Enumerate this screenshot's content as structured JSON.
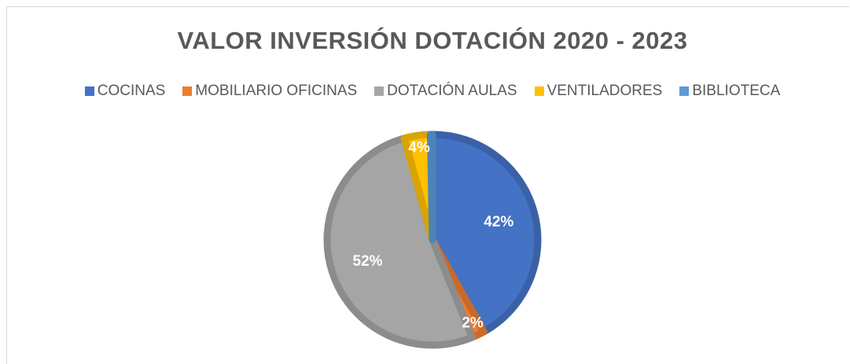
{
  "chart_data": {
    "type": "pie",
    "title": "VALOR INVERSIÓN DOTACIÓN 2020 - 2023",
    "categories": [
      "COCINAS",
      "MOBILIARIO OFICINAS",
      "DOTACIÓN AULAS",
      "VENTILADORES",
      "BIBLIOTECA"
    ],
    "values": [
      42,
      2,
      52,
      4,
      0.3
    ],
    "value_labels": [
      "42%",
      "2%",
      "52%",
      "4%",
      null
    ],
    "colors": [
      "#4472c4",
      "#ed7d31",
      "#a5a5a5",
      "#ffc000",
      "#5b9bd5"
    ],
    "legend": "top"
  }
}
